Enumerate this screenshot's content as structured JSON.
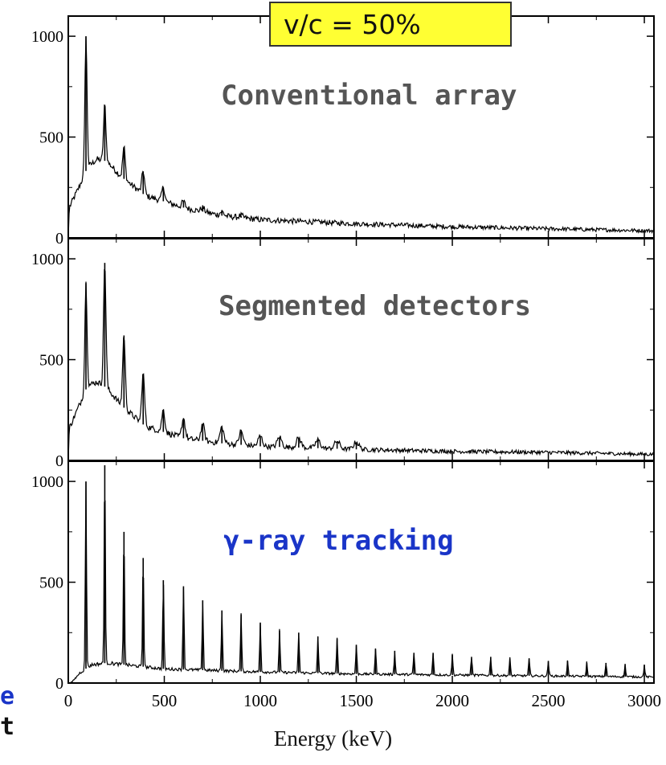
{
  "badge_text": "v/c = 50%",
  "side_fragments": [
    "e",
    "t"
  ],
  "colors": {
    "badge_bg": "#ffff33",
    "label_gray": "#555555",
    "label_blue": "#1a35c8",
    "trace": "#000000"
  },
  "chart_data": [
    {
      "type": "line",
      "title": "Conventional array",
      "xlabel": "Energy (keV)",
      "ylabel": "",
      "xlim": [
        0,
        3050
      ],
      "ylim": [
        0,
        1100
      ],
      "x_ticks": [
        0,
        500,
        1000,
        1500,
        2000,
        2500,
        3000
      ],
      "y_ticks": [
        0,
        500,
        1000
      ],
      "continuum": [
        [
          0,
          0
        ],
        [
          5,
          150
        ],
        [
          60,
          260
        ],
        [
          100,
          350
        ],
        [
          150,
          390
        ],
        [
          200,
          380
        ],
        [
          280,
          300
        ],
        [
          400,
          210
        ],
        [
          600,
          150
        ],
        [
          800,
          110
        ],
        [
          1000,
          90
        ],
        [
          1500,
          70
        ],
        [
          2000,
          55
        ],
        [
          2500,
          45
        ],
        [
          3050,
          35
        ]
      ],
      "peaks": [
        {
          "x": 92,
          "y": 1000
        },
        {
          "x": 190,
          "y": 660
        },
        {
          "x": 290,
          "y": 450
        },
        {
          "x": 390,
          "y": 330
        },
        {
          "x": 495,
          "y": 250
        },
        {
          "x": 600,
          "y": 180
        },
        {
          "x": 700,
          "y": 150
        },
        {
          "x": 800,
          "y": 130
        },
        {
          "x": 900,
          "y": 110
        }
      ]
    },
    {
      "type": "line",
      "title": "Segmented detectors",
      "xlabel": "Energy (keV)",
      "ylabel": "",
      "xlim": [
        0,
        3050
      ],
      "ylim": [
        0,
        1100
      ],
      "x_ticks": [
        0,
        500,
        1000,
        1500,
        2000,
        2500,
        3000
      ],
      "y_ticks": [
        0,
        500,
        1000
      ],
      "continuum": [
        [
          0,
          0
        ],
        [
          5,
          160
        ],
        [
          60,
          280
        ],
        [
          100,
          370
        ],
        [
          150,
          390
        ],
        [
          200,
          360
        ],
        [
          280,
          270
        ],
        [
          400,
          170
        ],
        [
          600,
          110
        ],
        [
          800,
          85
        ],
        [
          1000,
          70
        ],
        [
          1500,
          55
        ],
        [
          2000,
          45
        ],
        [
          2500,
          40
        ],
        [
          3050,
          30
        ]
      ],
      "peaks": [
        {
          "x": 92,
          "y": 880
        },
        {
          "x": 190,
          "y": 980
        },
        {
          "x": 290,
          "y": 620
        },
        {
          "x": 390,
          "y": 430
        },
        {
          "x": 495,
          "y": 250
        },
        {
          "x": 600,
          "y": 210
        },
        {
          "x": 700,
          "y": 180
        },
        {
          "x": 800,
          "y": 165
        },
        {
          "x": 900,
          "y": 145
        },
        {
          "x": 1000,
          "y": 120
        },
        {
          "x": 1100,
          "y": 115
        },
        {
          "x": 1200,
          "y": 110
        },
        {
          "x": 1300,
          "y": 100
        },
        {
          "x": 1400,
          "y": 95
        },
        {
          "x": 1500,
          "y": 90
        }
      ]
    },
    {
      "type": "line",
      "title": "γ-ray tracking",
      "xlabel": "Energy (keV)",
      "ylabel": "",
      "xlim": [
        0,
        3050
      ],
      "ylim": [
        0,
        1100
      ],
      "x_ticks": [
        0,
        500,
        1000,
        1500,
        2000,
        2500,
        3000
      ],
      "y_ticks": [
        0,
        500,
        1000
      ],
      "continuum": [
        [
          0,
          0
        ],
        [
          20,
          5
        ],
        [
          60,
          50
        ],
        [
          120,
          90
        ],
        [
          200,
          100
        ],
        [
          300,
          90
        ],
        [
          500,
          70
        ],
        [
          1000,
          55
        ],
        [
          1500,
          45
        ],
        [
          2000,
          40
        ],
        [
          2500,
          35
        ],
        [
          3050,
          30
        ]
      ],
      "peaks": [
        {
          "x": 92,
          "y": 1000
        },
        {
          "x": 190,
          "y": 1080
        },
        {
          "x": 290,
          "y": 750
        },
        {
          "x": 390,
          "y": 620
        },
        {
          "x": 495,
          "y": 510
        },
        {
          "x": 600,
          "y": 480
        },
        {
          "x": 700,
          "y": 410
        },
        {
          "x": 800,
          "y": 360
        },
        {
          "x": 900,
          "y": 340
        },
        {
          "x": 1000,
          "y": 300
        },
        {
          "x": 1100,
          "y": 260
        },
        {
          "x": 1200,
          "y": 250
        },
        {
          "x": 1300,
          "y": 230
        },
        {
          "x": 1400,
          "y": 220
        },
        {
          "x": 1500,
          "y": 190
        },
        {
          "x": 1600,
          "y": 170
        },
        {
          "x": 1700,
          "y": 160
        },
        {
          "x": 1800,
          "y": 150
        },
        {
          "x": 1900,
          "y": 150
        },
        {
          "x": 2000,
          "y": 140
        },
        {
          "x": 2100,
          "y": 130
        },
        {
          "x": 2200,
          "y": 130
        },
        {
          "x": 2300,
          "y": 120
        },
        {
          "x": 2400,
          "y": 120
        },
        {
          "x": 2500,
          "y": 110
        },
        {
          "x": 2600,
          "y": 110
        },
        {
          "x": 2700,
          "y": 100
        },
        {
          "x": 2800,
          "y": 100
        },
        {
          "x": 2900,
          "y": 90
        },
        {
          "x": 3000,
          "y": 90
        }
      ]
    }
  ]
}
